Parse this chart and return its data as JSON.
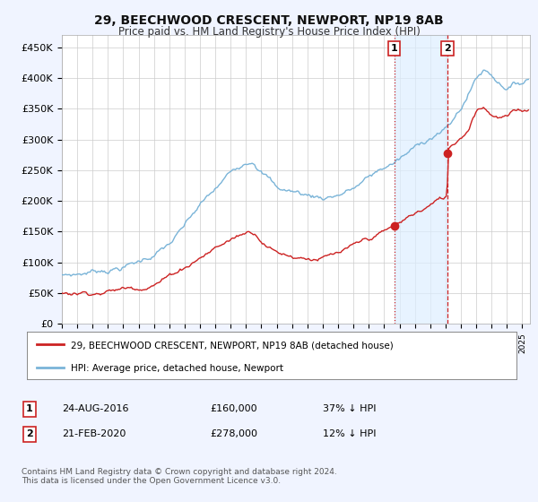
{
  "title": "29, BEECHWOOD CRESCENT, NEWPORT, NP19 8AB",
  "subtitle": "Price paid vs. HM Land Registry's House Price Index (HPI)",
  "x_start_year": 1995.0,
  "x_end_year": 2025.5,
  "y_min": 0,
  "y_max": 470000,
  "yticks": [
    0,
    50000,
    100000,
    150000,
    200000,
    250000,
    300000,
    350000,
    400000,
    450000
  ],
  "ytick_labels": [
    "£0",
    "£50K",
    "£100K",
    "£150K",
    "£200K",
    "£250K",
    "£300K",
    "£350K",
    "£400K",
    "£450K"
  ],
  "hpi_color": "#7ab4d8",
  "price_color": "#cc2222",
  "marker1_date": 2016.648,
  "marker1_price": 160000,
  "marker2_date": 2020.13,
  "marker2_price": 278000,
  "legend_line1": "29, BEECHWOOD CRESCENT, NEWPORT, NP19 8AB (detached house)",
  "legend_line2": "HPI: Average price, detached house, Newport",
  "table_row1": [
    "1",
    "24-AUG-2016",
    "£160,000",
    "37% ↓ HPI"
  ],
  "table_row2": [
    "2",
    "21-FEB-2020",
    "£278,000",
    "12% ↓ HPI"
  ],
  "footnote": "Contains HM Land Registry data © Crown copyright and database right 2024.\nThis data is licensed under the Open Government Licence v3.0.",
  "background_color": "#f0f4ff",
  "plot_bg_color": "#ffffff",
  "grid_color": "#cccccc",
  "shade_color": "#ddeeff"
}
